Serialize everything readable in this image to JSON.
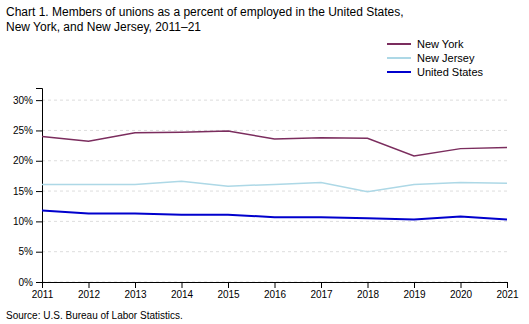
{
  "chart_data": {
    "type": "line",
    "title": [
      "Chart 1. Members of unions as a percent of employed in the United States,",
      "New York, and New Jersey, 2011–21"
    ],
    "source": "Source: U.S. Bureau of Labor Statistics.",
    "x": [
      2011,
      2012,
      2013,
      2014,
      2015,
      2016,
      2017,
      2018,
      2019,
      2020,
      2021
    ],
    "series": [
      {
        "name": "New York",
        "color": "#7B2D5E",
        "values": [
          24.0,
          23.2,
          24.6,
          24.7,
          24.9,
          23.6,
          23.8,
          23.7,
          20.8,
          22.0,
          22.2
        ]
      },
      {
        "name": "New Jersey",
        "color": "#ADD8E6",
        "values": [
          16.1,
          16.1,
          16.1,
          16.6,
          15.8,
          16.1,
          16.4,
          14.9,
          16.1,
          16.4,
          16.3
        ]
      },
      {
        "name": "United States",
        "color": "#0000CD",
        "values": [
          11.8,
          11.3,
          11.3,
          11.1,
          11.1,
          10.7,
          10.7,
          10.5,
          10.3,
          10.8,
          10.3
        ]
      }
    ],
    "xlim": [
      2011,
      2021
    ],
    "xticks": [
      2011,
      2012,
      2013,
      2014,
      2015,
      2016,
      2017,
      2018,
      2019,
      2020,
      2021
    ],
    "ylim": [
      0,
      32
    ],
    "yticks": [
      {
        "value": 0,
        "label": "0%"
      },
      {
        "value": 5,
        "label": "5%"
      },
      {
        "value": 10,
        "label": "10%"
      },
      {
        "value": 15,
        "label": "15%"
      },
      {
        "value": 20,
        "label": "20%"
      },
      {
        "value": 25,
        "label": "25%"
      },
      {
        "value": 30,
        "label": "30%"
      }
    ],
    "grid": true,
    "legend": "upper right"
  }
}
